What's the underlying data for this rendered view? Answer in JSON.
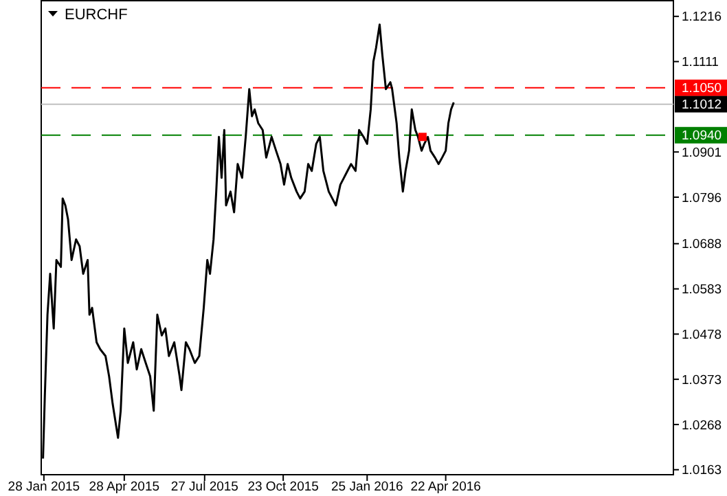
{
  "chart_data": {
    "type": "line",
    "title": "EURCHF",
    "xlim": [
      "2015-01-25",
      "2017-01-02"
    ],
    "ylim": [
      1.0153,
      1.1254
    ],
    "xticks": [
      {
        "value": "2015-01-28",
        "label": "28 Jan 2015"
      },
      {
        "value": "2015-04-28",
        "label": "28 Apr 2015"
      },
      {
        "value": "2015-07-27",
        "label": "27 Jul 2015"
      },
      {
        "value": "2015-10-23",
        "label": "23 Oct 2015"
      },
      {
        "value": "2016-01-25",
        "label": "25 Jan 2016"
      },
      {
        "value": "2016-04-22",
        "label": "22 Apr 2016"
      }
    ],
    "yticks": [
      1.1216,
      1.1111,
      1.0901,
      1.0796,
      1.0688,
      1.0583,
      1.0478,
      1.0373,
      1.0268,
      1.0163
    ],
    "grid": false,
    "marker": "none",
    "line_style": "solid",
    "ref_lines": [
      {
        "axis": "y",
        "value": 1.105,
        "label": "1.1050",
        "color": "#ff0000",
        "line_style": "dashed"
      },
      {
        "axis": "y",
        "value": 1.1012,
        "label": "1.1012",
        "color": "#c0c0c0",
        "line_style": "solid"
      },
      {
        "axis": "y",
        "value": 1.094,
        "label": "1.0940",
        "color": "#008000",
        "line_style": "dashed"
      }
    ],
    "series": [
      {
        "color": "#000000",
        "x": [
          "2015-01-27",
          "2015-01-29",
          "2015-02-01",
          "2015-02-04",
          "2015-02-08",
          "2015-02-11",
          "2015-02-16",
          "2015-02-18",
          "2015-02-21",
          "2015-02-24",
          "2015-02-28",
          "2015-03-05",
          "2015-03-09",
          "2015-03-13",
          "2015-03-18",
          "2015-03-20",
          "2015-03-23",
          "2015-03-28",
          "2015-04-01",
          "2015-04-07",
          "2015-04-11",
          "2015-04-15",
          "2015-04-21",
          "2015-04-24",
          "2015-04-28",
          "2015-05-02",
          "2015-05-08",
          "2015-05-12",
          "2015-05-17",
          "2015-05-22",
          "2015-05-27",
          "2015-05-31",
          "2015-06-04",
          "2015-06-09",
          "2015-06-13",
          "2015-06-17",
          "2015-06-23",
          "2015-06-29",
          "2015-07-01",
          "2015-07-06",
          "2015-07-10",
          "2015-07-16",
          "2015-07-21",
          "2015-07-26",
          "2015-07-30",
          "2015-08-02",
          "2015-08-06",
          "2015-08-09",
          "2015-08-12",
          "2015-08-15",
          "2015-08-18",
          "2015-08-20",
          "2015-08-25",
          "2015-08-29",
          "2015-09-02",
          "2015-09-07",
          "2015-09-11",
          "2015-09-15",
          "2015-09-18",
          "2015-09-21",
          "2015-09-25",
          "2015-09-30",
          "2015-10-04",
          "2015-10-10",
          "2015-10-15",
          "2015-10-20",
          "2015-10-24",
          "2015-10-28",
          "2015-11-01",
          "2015-11-07",
          "2015-11-11",
          "2015-11-16",
          "2015-11-20",
          "2015-11-24",
          "2015-11-29",
          "2015-12-03",
          "2015-12-07",
          "2015-12-13",
          "2015-12-17",
          "2015-12-21",
          "2015-12-26",
          "2015-12-30",
          "2016-01-03",
          "2016-01-07",
          "2016-01-12",
          "2016-01-16",
          "2016-01-21",
          "2016-01-25",
          "2016-01-29",
          "2016-02-01",
          "2016-02-04",
          "2016-02-08",
          "2016-02-11",
          "2016-02-15",
          "2016-02-20",
          "2016-02-22",
          "2016-02-27",
          "2016-03-01",
          "2016-03-05",
          "2016-03-08",
          "2016-03-12",
          "2016-03-15",
          "2016-03-19",
          "2016-03-22",
          "2016-03-26",
          "2016-03-29",
          "2016-04-02",
          "2016-04-05",
          "2016-04-10",
          "2016-04-14",
          "2016-04-18",
          "2016-04-22",
          "2016-04-25",
          "2016-04-28",
          "2016-05-01"
        ],
        "values": [
          1.0189,
          1.0332,
          1.0523,
          1.0618,
          1.0491,
          1.065,
          1.0634,
          1.0793,
          1.0777,
          1.0745,
          1.065,
          1.0698,
          1.0682,
          1.0618,
          1.065,
          1.0523,
          1.0539,
          1.0459,
          1.0443,
          1.0427,
          1.038,
          1.0316,
          1.0237,
          1.03,
          1.0491,
          1.0411,
          1.0459,
          1.0396,
          1.0443,
          1.0411,
          1.038,
          1.03,
          1.0523,
          1.0475,
          1.0491,
          1.0427,
          1.0459,
          1.038,
          1.0348,
          1.0459,
          1.0443,
          1.0411,
          1.0427,
          1.0539,
          1.065,
          1.0618,
          1.0698,
          1.0809,
          1.0936,
          1.0841,
          1.0952,
          1.0777,
          1.0809,
          1.0761,
          1.0873,
          1.0841,
          1.0936,
          1.1047,
          1.0984,
          1.1,
          1.0968,
          1.0952,
          1.0888,
          1.0936,
          1.0904,
          1.0873,
          1.0825,
          1.0873,
          1.0841,
          1.0809,
          1.0793,
          1.0809,
          1.0873,
          1.0857,
          1.092,
          1.0936,
          1.0857,
          1.0809,
          1.0793,
          1.0777,
          1.0825,
          1.0841,
          1.0857,
          1.0873,
          1.0857,
          1.0952,
          1.0936,
          1.092,
          1.1,
          1.1111,
          1.1143,
          1.1197,
          1.1127,
          1.1047,
          1.1063,
          1.1047,
          1.0968,
          1.0888,
          1.0809,
          1.0857,
          1.0904,
          1.1,
          1.0952,
          1.0936,
          1.0904,
          1.092,
          1.0936,
          1.0904,
          1.0888,
          1.0873,
          1.0888,
          1.0904,
          1.0968,
          1.1,
          1.1016
        ]
      },
      {
        "type": "scatter",
        "marker": "square",
        "color": "#ff0000",
        "x": [
          "2016-03-27"
        ],
        "values": [
          1.0936
        ]
      }
    ]
  }
}
